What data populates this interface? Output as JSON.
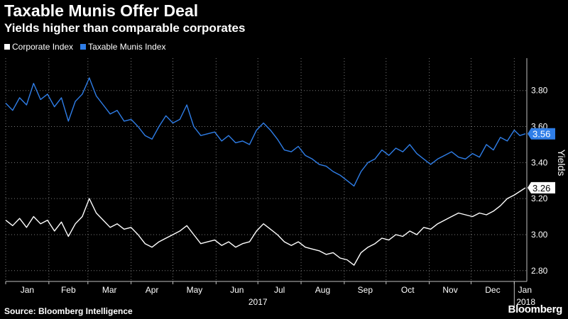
{
  "title": "Taxable Munis Offer Deal",
  "subtitle": "Yields higher than comparable corporates",
  "source": "Source: Bloomberg Intelligence",
  "brand": "Bloomberg",
  "colors": {
    "corporate": "#ffffff",
    "munis": "#2f7ee8",
    "grid": "#7a7a7a",
    "axis": "#bfbfbf"
  },
  "chart_data": {
    "type": "line",
    "ylabel": "Yields",
    "ylim": [
      2.74,
      3.98
    ],
    "yticks": [
      2.8,
      3.0,
      3.2,
      3.4,
      3.6,
      3.8
    ],
    "ytick_labels": [
      "2.80",
      "3.00",
      "3.20",
      "3.40",
      "3.60",
      "3.80"
    ],
    "grid": true,
    "legend_position": "top-left",
    "x_start": "2017-01-01",
    "x_end": "2018-01-10",
    "month_labels": [
      "Jan",
      "Feb",
      "Mar",
      "Apr",
      "May",
      "Jun",
      "Jul",
      "Aug",
      "Sep",
      "Oct",
      "Nov",
      "Dec",
      "Jan"
    ],
    "month_dates": [
      "2017-01-01",
      "2017-02-01",
      "2017-03-01",
      "2017-04-01",
      "2017-05-01",
      "2017-06-01",
      "2017-07-01",
      "2017-08-01",
      "2017-09-01",
      "2017-10-01",
      "2017-11-01",
      "2017-12-01",
      "2018-01-01"
    ],
    "year_labels": [
      {
        "text": "2017",
        "date": "2017-07-01"
      },
      {
        "text": "2018",
        "date": "2018-01-01"
      }
    ],
    "series": [
      {
        "name": "Corporate Index",
        "color_key": "corporate",
        "last_label": "3.26",
        "points": [
          [
            "2017-01-01",
            3.08
          ],
          [
            "2017-01-06",
            3.05
          ],
          [
            "2017-01-11",
            3.09
          ],
          [
            "2017-01-16",
            3.04
          ],
          [
            "2017-01-21",
            3.1
          ],
          [
            "2017-01-26",
            3.06
          ],
          [
            "2017-01-31",
            3.08
          ],
          [
            "2017-02-05",
            3.02
          ],
          [
            "2017-02-10",
            3.07
          ],
          [
            "2017-02-15",
            2.99
          ],
          [
            "2017-02-20",
            3.06
          ],
          [
            "2017-02-25",
            3.1
          ],
          [
            "2017-03-02",
            3.2
          ],
          [
            "2017-03-07",
            3.12
          ],
          [
            "2017-03-12",
            3.08
          ],
          [
            "2017-03-17",
            3.04
          ],
          [
            "2017-03-22",
            3.06
          ],
          [
            "2017-03-27",
            3.03
          ],
          [
            "2017-04-01",
            3.04
          ],
          [
            "2017-04-06",
            3.0
          ],
          [
            "2017-04-11",
            2.95
          ],
          [
            "2017-04-16",
            2.93
          ],
          [
            "2017-04-21",
            2.96
          ],
          [
            "2017-04-26",
            2.98
          ],
          [
            "2017-05-01",
            3.0
          ],
          [
            "2017-05-06",
            3.02
          ],
          [
            "2017-05-11",
            3.05
          ],
          [
            "2017-05-16",
            3.0
          ],
          [
            "2017-05-21",
            2.95
          ],
          [
            "2017-05-26",
            2.96
          ],
          [
            "2017-05-31",
            2.97
          ],
          [
            "2017-06-05",
            2.94
          ],
          [
            "2017-06-10",
            2.96
          ],
          [
            "2017-06-15",
            2.93
          ],
          [
            "2017-06-20",
            2.95
          ],
          [
            "2017-06-25",
            2.96
          ],
          [
            "2017-06-30",
            3.02
          ],
          [
            "2017-07-05",
            3.06
          ],
          [
            "2017-07-10",
            3.03
          ],
          [
            "2017-07-15",
            3.0
          ],
          [
            "2017-07-20",
            2.96
          ],
          [
            "2017-07-25",
            2.94
          ],
          [
            "2017-07-30",
            2.96
          ],
          [
            "2017-08-04",
            2.93
          ],
          [
            "2017-08-09",
            2.92
          ],
          [
            "2017-08-14",
            2.91
          ],
          [
            "2017-08-19",
            2.89
          ],
          [
            "2017-08-24",
            2.9
          ],
          [
            "2017-08-29",
            2.87
          ],
          [
            "2017-09-03",
            2.86
          ],
          [
            "2017-09-08",
            2.83
          ],
          [
            "2017-09-13",
            2.9
          ],
          [
            "2017-09-18",
            2.93
          ],
          [
            "2017-09-23",
            2.95
          ],
          [
            "2017-09-28",
            2.98
          ],
          [
            "2017-10-03",
            2.97
          ],
          [
            "2017-10-08",
            3.0
          ],
          [
            "2017-10-13",
            2.99
          ],
          [
            "2017-10-18",
            3.02
          ],
          [
            "2017-10-23",
            3.0
          ],
          [
            "2017-10-28",
            3.04
          ],
          [
            "2017-11-02",
            3.03
          ],
          [
            "2017-11-07",
            3.06
          ],
          [
            "2017-11-12",
            3.08
          ],
          [
            "2017-11-17",
            3.1
          ],
          [
            "2017-11-22",
            3.12
          ],
          [
            "2017-11-27",
            3.11
          ],
          [
            "2017-12-02",
            3.1
          ],
          [
            "2017-12-07",
            3.12
          ],
          [
            "2017-12-12",
            3.11
          ],
          [
            "2017-12-17",
            3.13
          ],
          [
            "2017-12-22",
            3.16
          ],
          [
            "2017-12-27",
            3.2
          ],
          [
            "2018-01-01",
            3.22
          ],
          [
            "2018-01-05",
            3.24
          ],
          [
            "2018-01-09",
            3.26
          ]
        ]
      },
      {
        "name": "Taxable Munis Index",
        "color_key": "munis",
        "last_label": "3.56",
        "points": [
          [
            "2017-01-01",
            3.73
          ],
          [
            "2017-01-06",
            3.69
          ],
          [
            "2017-01-11",
            3.76
          ],
          [
            "2017-01-16",
            3.72
          ],
          [
            "2017-01-21",
            3.84
          ],
          [
            "2017-01-26",
            3.75
          ],
          [
            "2017-01-31",
            3.78
          ],
          [
            "2017-02-05",
            3.71
          ],
          [
            "2017-02-10",
            3.76
          ],
          [
            "2017-02-15",
            3.63
          ],
          [
            "2017-02-20",
            3.74
          ],
          [
            "2017-02-25",
            3.78
          ],
          [
            "2017-03-02",
            3.87
          ],
          [
            "2017-03-07",
            3.77
          ],
          [
            "2017-03-12",
            3.72
          ],
          [
            "2017-03-17",
            3.67
          ],
          [
            "2017-03-22",
            3.69
          ],
          [
            "2017-03-27",
            3.63
          ],
          [
            "2017-04-01",
            3.64
          ],
          [
            "2017-04-06",
            3.6
          ],
          [
            "2017-04-11",
            3.55
          ],
          [
            "2017-04-16",
            3.53
          ],
          [
            "2017-04-21",
            3.6
          ],
          [
            "2017-04-26",
            3.66
          ],
          [
            "2017-05-01",
            3.62
          ],
          [
            "2017-05-06",
            3.64
          ],
          [
            "2017-05-11",
            3.72
          ],
          [
            "2017-05-16",
            3.6
          ],
          [
            "2017-05-21",
            3.55
          ],
          [
            "2017-05-26",
            3.56
          ],
          [
            "2017-05-31",
            3.57
          ],
          [
            "2017-06-05",
            3.52
          ],
          [
            "2017-06-10",
            3.55
          ],
          [
            "2017-06-15",
            3.51
          ],
          [
            "2017-06-20",
            3.52
          ],
          [
            "2017-06-25",
            3.5
          ],
          [
            "2017-06-30",
            3.58
          ],
          [
            "2017-07-05",
            3.62
          ],
          [
            "2017-07-10",
            3.58
          ],
          [
            "2017-07-15",
            3.53
          ],
          [
            "2017-07-20",
            3.47
          ],
          [
            "2017-07-25",
            3.46
          ],
          [
            "2017-07-30",
            3.49
          ],
          [
            "2017-08-04",
            3.44
          ],
          [
            "2017-08-09",
            3.42
          ],
          [
            "2017-08-14",
            3.39
          ],
          [
            "2017-08-19",
            3.38
          ],
          [
            "2017-08-24",
            3.35
          ],
          [
            "2017-08-29",
            3.33
          ],
          [
            "2017-09-03",
            3.3
          ],
          [
            "2017-09-08",
            3.27
          ],
          [
            "2017-09-13",
            3.35
          ],
          [
            "2017-09-18",
            3.4
          ],
          [
            "2017-09-23",
            3.42
          ],
          [
            "2017-09-28",
            3.47
          ],
          [
            "2017-10-03",
            3.44
          ],
          [
            "2017-10-08",
            3.48
          ],
          [
            "2017-10-13",
            3.46
          ],
          [
            "2017-10-18",
            3.5
          ],
          [
            "2017-10-23",
            3.45
          ],
          [
            "2017-10-28",
            3.42
          ],
          [
            "2017-11-02",
            3.39
          ],
          [
            "2017-11-07",
            3.42
          ],
          [
            "2017-11-12",
            3.44
          ],
          [
            "2017-11-17",
            3.46
          ],
          [
            "2017-11-22",
            3.43
          ],
          [
            "2017-11-27",
            3.42
          ],
          [
            "2017-12-02",
            3.45
          ],
          [
            "2017-12-07",
            3.43
          ],
          [
            "2017-12-12",
            3.5
          ],
          [
            "2017-12-17",
            3.47
          ],
          [
            "2017-12-22",
            3.54
          ],
          [
            "2017-12-27",
            3.52
          ],
          [
            "2018-01-01",
            3.58
          ],
          [
            "2018-01-05",
            3.55
          ],
          [
            "2018-01-09",
            3.56
          ]
        ]
      }
    ]
  }
}
